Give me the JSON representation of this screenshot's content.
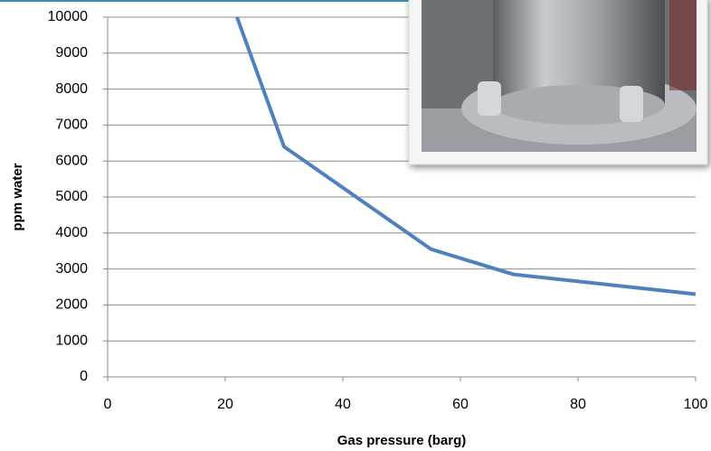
{
  "chart_data": {
    "type": "line",
    "x_label": "Gas pressure (barg)",
    "y_label": "ppm water",
    "x": [
      22,
      30,
      55,
      69,
      100
    ],
    "series": [
      {
        "color": "#4f81bd",
        "values": [
          10000,
          6400,
          3550,
          2850,
          2300
        ]
      }
    ],
    "xlim": [
      0,
      100
    ],
    "xticks": [
      0,
      20,
      40,
      60,
      80,
      100
    ],
    "ylim": [
      0,
      10000
    ],
    "yticks": [
      0,
      1000,
      2000,
      3000,
      4000,
      5000,
      6000,
      7000,
      8000,
      9000,
      10000
    ],
    "grid": true
  }
}
